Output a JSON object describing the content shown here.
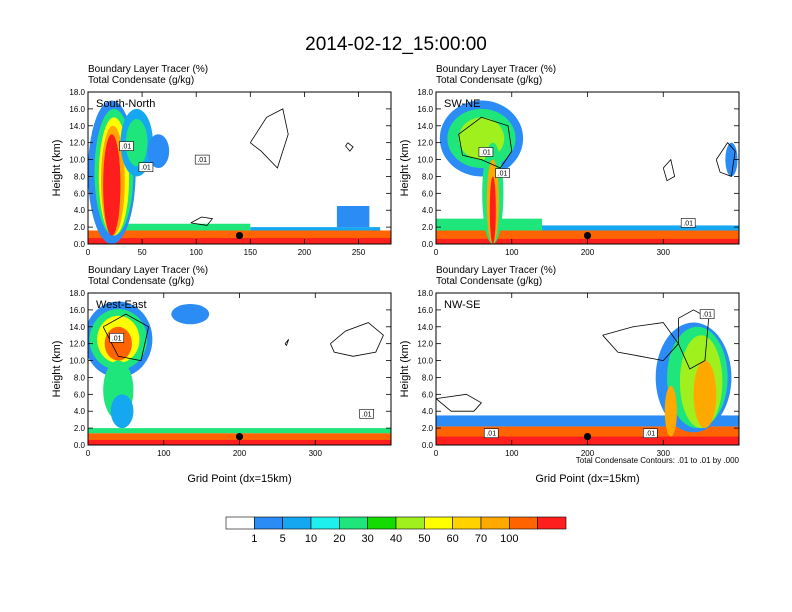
{
  "title": "2014-02-12_15:00:00",
  "chart_data": {
    "type": "heatmap",
    "colorbar": {
      "labels": [
        "1",
        "5",
        "10",
        "20",
        "30",
        "40",
        "50",
        "60",
        "70",
        "100"
      ],
      "colors": [
        "#ffffff",
        "#2a8cf4",
        "#15a8f0",
        "#1ef0ee",
        "#1ee67a",
        "#14dc00",
        "#a0f01e",
        "#ffff00",
        "#ffd200",
        "#ffa800",
        "#ff6400",
        "#ff1e1e"
      ]
    },
    "contour_note": "Total Condensate Contours: .01 to .01 by .000",
    "panels": [
      {
        "label": "South-North",
        "header": [
          "Boundary Layer Tracer   (%)",
          "Total Condensate   (g/kg)"
        ],
        "ylabel": "Height (km)",
        "xlabel": "",
        "xlim": [
          0,
          280
        ],
        "xticks": [
          "0",
          "50",
          "100",
          "150",
          "200",
          "250"
        ],
        "ylim": [
          0,
          18
        ],
        "yticks": [
          "0.0",
          "2.0",
          "4.0",
          "6.0",
          "8.0",
          "10.0",
          "12.0",
          "14.0",
          "16.0",
          "18.0"
        ],
        "contour_labels": [
          ".01",
          ".01",
          ".01"
        ],
        "marker": {
          "x": 140,
          "y": 1.0
        },
        "bands": [
          {
            "x": 0,
            "w": 280,
            "b": 0,
            "t": 1.6,
            "c": "#ff6400"
          },
          {
            "x": 0,
            "w": 280,
            "b": 0,
            "t": 0.7,
            "c": "#ff1e1e"
          },
          {
            "x": 30,
            "w": 120,
            "b": 1.6,
            "t": 2.4,
            "c": "#1ee67a"
          },
          {
            "x": 150,
            "w": 120,
            "b": 1.6,
            "t": 2.0,
            "c": "#15a8f0"
          },
          {
            "x": 230,
            "w": 30,
            "b": 2.0,
            "t": 4.5,
            "c": "#2a8cf4"
          }
        ],
        "blobs": [
          {
            "x": 22,
            "y": 8.5,
            "rx": 22,
            "ry": 8.5,
            "c": "#2a8cf4"
          },
          {
            "x": 24,
            "y": 8.5,
            "rx": 18,
            "ry": 7.5,
            "c": "#1ee67a"
          },
          {
            "x": 24,
            "y": 8.0,
            "rx": 14,
            "ry": 7.0,
            "c": "#ffff00"
          },
          {
            "x": 23,
            "y": 7.5,
            "rx": 11,
            "ry": 6.5,
            "c": "#ffa800"
          },
          {
            "x": 22,
            "y": 7.0,
            "rx": 8,
            "ry": 6.0,
            "c": "#ff1e1e"
          },
          {
            "x": 45,
            "y": 12.0,
            "rx": 15,
            "ry": 4.0,
            "c": "#15a8f0"
          },
          {
            "x": 45,
            "y": 12.0,
            "rx": 10,
            "ry": 2.8,
            "c": "#1ee67a"
          },
          {
            "x": 65,
            "y": 11.0,
            "rx": 10,
            "ry": 2.0,
            "c": "#2a8cf4"
          }
        ]
      },
      {
        "label": "SW-NE",
        "header": [
          "Boundary Layer Tracer   (%)",
          "Total Condensate   (g/kg)"
        ],
        "ylabel": "Height (km)",
        "xlabel": "",
        "xlim": [
          0,
          400
        ],
        "xticks": [
          "0",
          "100",
          "200",
          "300"
        ],
        "ylim": [
          0,
          18
        ],
        "yticks": [
          "0.0",
          "2.0",
          "4.0",
          "6.0",
          "8.0",
          "10.0",
          "12.0",
          "14.0",
          "16.0",
          "18.0"
        ],
        "contour_labels": [
          ".01",
          ".01",
          ".01"
        ],
        "marker": {
          "x": 200,
          "y": 1.0
        },
        "bands": [
          {
            "x": 0,
            "w": 400,
            "b": 0,
            "t": 1.6,
            "c": "#ff6400"
          },
          {
            "x": 0,
            "w": 400,
            "b": 0,
            "t": 0.6,
            "c": "#ff1e1e"
          },
          {
            "x": 0,
            "w": 140,
            "b": 1.6,
            "t": 3.0,
            "c": "#1ee67a"
          },
          {
            "x": 140,
            "w": 260,
            "b": 1.6,
            "t": 2.2,
            "c": "#15a8f0"
          }
        ],
        "blobs": [
          {
            "x": 60,
            "y": 12.5,
            "rx": 55,
            "ry": 4.5,
            "c": "#2a8cf4"
          },
          {
            "x": 60,
            "y": 12.5,
            "rx": 45,
            "ry": 3.5,
            "c": "#1ee67a"
          },
          {
            "x": 60,
            "y": 12.5,
            "rx": 30,
            "ry": 2.5,
            "c": "#a0f01e"
          },
          {
            "x": 75,
            "y": 6.0,
            "rx": 14,
            "ry": 6.0,
            "c": "#1ee67a"
          },
          {
            "x": 75,
            "y": 5.0,
            "rx": 8,
            "ry": 5.0,
            "c": "#ffa800"
          },
          {
            "x": 75,
            "y": 4.0,
            "rx": 4,
            "ry": 4.0,
            "c": "#ff1e1e"
          },
          {
            "x": 390,
            "y": 10.0,
            "rx": 8,
            "ry": 2.0,
            "c": "#2a8cf4"
          }
        ]
      },
      {
        "label": "West-East",
        "header": [
          "Boundary Layer Tracer   (%)",
          "Total Condensate   (g/kg)"
        ],
        "ylabel": "Height (km)",
        "xlabel": "Grid Point (dx=15km)",
        "xlim": [
          0,
          400
        ],
        "xticks": [
          "0",
          "100",
          "200",
          "300"
        ],
        "ylim": [
          0,
          18
        ],
        "yticks": [
          "0.0",
          "2.0",
          "4.0",
          "6.0",
          "8.0",
          "10.0",
          "12.0",
          "14.0",
          "16.0",
          "18.0"
        ],
        "contour_labels": [
          ".01",
          ".01"
        ],
        "marker": {
          "x": 200,
          "y": 1.0
        },
        "bands": [
          {
            "x": 0,
            "w": 400,
            "b": 0,
            "t": 1.4,
            "c": "#ff6400"
          },
          {
            "x": 0,
            "w": 400,
            "b": 0,
            "t": 0.6,
            "c": "#ff1e1e"
          },
          {
            "x": 0,
            "w": 400,
            "b": 1.4,
            "t": 2.0,
            "c": "#1ee67a"
          }
        ],
        "blobs": [
          {
            "x": 40,
            "y": 12.5,
            "rx": 45,
            "ry": 4.5,
            "c": "#2a8cf4"
          },
          {
            "x": 40,
            "y": 12.5,
            "rx": 38,
            "ry": 3.6,
            "c": "#1ee67a"
          },
          {
            "x": 40,
            "y": 12.5,
            "rx": 28,
            "ry": 2.8,
            "c": "#ffff00"
          },
          {
            "x": 40,
            "y": 12.0,
            "rx": 18,
            "ry": 2.0,
            "c": "#ff6400"
          },
          {
            "x": 40,
            "y": 6.5,
            "rx": 20,
            "ry": 3.5,
            "c": "#1ee67a"
          },
          {
            "x": 45,
            "y": 4.0,
            "rx": 15,
            "ry": 2.0,
            "c": "#15a8f0"
          },
          {
            "x": 135,
            "y": 15.5,
            "rx": 25,
            "ry": 1.2,
            "c": "#2a8cf4"
          }
        ]
      },
      {
        "label": "NW-SE",
        "header": [
          "Boundary Layer Tracer   (%)",
          "Total Condensate   (g/kg)"
        ],
        "ylabel": "Height (km)",
        "xlabel": "Grid Point (dx=15km)",
        "xlim": [
          0,
          400
        ],
        "xticks": [
          "0",
          "100",
          "200",
          "300"
        ],
        "ylim": [
          0,
          18
        ],
        "yticks": [
          "0.0",
          "2.0",
          "4.0",
          "6.0",
          "8.0",
          "10.0",
          "12.0",
          "14.0",
          "16.0",
          "18.0"
        ],
        "contour_labels": [
          ".01",
          ".01",
          ".01"
        ],
        "marker": {
          "x": 200,
          "y": 1.0
        },
        "bands": [
          {
            "x": 0,
            "w": 400,
            "b": 0,
            "t": 2.2,
            "c": "#ff6400"
          },
          {
            "x": 0,
            "w": 400,
            "b": 0,
            "t": 1.0,
            "c": "#ff1e1e"
          },
          {
            "x": 0,
            "w": 400,
            "b": 2.2,
            "t": 3.5,
            "c": "#2a8cf4"
          }
        ],
        "blobs": [
          {
            "x": 340,
            "y": 8.0,
            "rx": 50,
            "ry": 6.5,
            "c": "#2a8cf4"
          },
          {
            "x": 345,
            "y": 8.0,
            "rx": 40,
            "ry": 6.0,
            "c": "#1ee67a"
          },
          {
            "x": 350,
            "y": 7.5,
            "rx": 28,
            "ry": 5.5,
            "c": "#a0f01e"
          },
          {
            "x": 355,
            "y": 6.0,
            "rx": 15,
            "ry": 4.0,
            "c": "#ffa800"
          },
          {
            "x": 310,
            "y": 4.0,
            "rx": 8,
            "ry": 3.0,
            "c": "#ffa800"
          }
        ]
      }
    ]
  }
}
